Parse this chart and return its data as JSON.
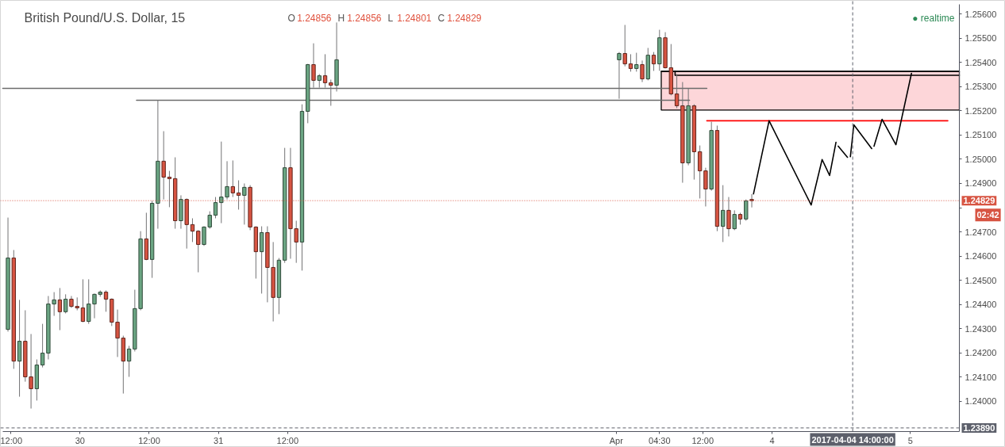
{
  "chart_data": {
    "type": "candlestick",
    "title": "British Pound/U.S. Dollar, 15",
    "subtitle": "O 1.24856 H 1.24856 L 1.24801 C 1.24829",
    "x": [
      "2017-03-29T11:30",
      "2017-03-29T12:30",
      "2017-03-29T13:30",
      "2017-03-29T14:30",
      "2017-03-29T15:30",
      "2017-03-29T16:30",
      "2017-03-29T17:30",
      "2017-03-29T18:30",
      "2017-03-29T19:30",
      "2017-03-29T20:30",
      "2017-03-29T21:30",
      "2017-03-29T22:30",
      "2017-03-29T23:30",
      "2017-03-30T00:30",
      "2017-03-30T01:30",
      "2017-03-30T02:30",
      "2017-03-30T03:30",
      "2017-03-30T04:30",
      "2017-03-30T05:30",
      "2017-03-30T06:30",
      "2017-03-30T07:30",
      "2017-03-30T08:30",
      "2017-03-30T09:30",
      "2017-03-30T10:30",
      "2017-03-30T11:30",
      "2017-03-30T12:30",
      "2017-03-30T13:30",
      "2017-03-30T14:30",
      "2017-03-30T15:30",
      "2017-03-30T16:30",
      "2017-03-30T17:30",
      "2017-03-30T18:30",
      "2017-03-30T19:30",
      "2017-03-30T20:30",
      "2017-03-30T21:30",
      "2017-03-30T22:30",
      "2017-03-30T23:30",
      "2017-03-31T00:30",
      "2017-03-31T01:30",
      "2017-03-31T02:30",
      "2017-03-31T03:30",
      "2017-03-31T04:30",
      "2017-03-31T05:30",
      "2017-03-31T06:30",
      "2017-03-31T07:30",
      "2017-03-31T08:30",
      "2017-03-31T09:30",
      "2017-03-31T10:30",
      "2017-03-31T11:30",
      "2017-03-31T12:30",
      "2017-03-31T13:30",
      "2017-03-31T14:30",
      "2017-03-31T15:30",
      "2017-03-31T16:30",
      "2017-03-31T17:30",
      "2017-03-31T18:30",
      "2017-03-31T19:30",
      "2017-03-31T20:30",
      "2017-04-02T21:30",
      "2017-04-02T22:30",
      "2017-04-02T23:30",
      "2017-04-03T00:30",
      "2017-04-03T01:30",
      "2017-04-03T02:30",
      "2017-04-03T03:30",
      "2017-04-03T04:30",
      "2017-04-03T05:30",
      "2017-04-03T06:30",
      "2017-04-03T07:30",
      "2017-04-03T08:30",
      "2017-04-03T09:30",
      "2017-04-03T10:30",
      "2017-04-03T11:30",
      "2017-04-03T12:30",
      "2017-04-03T13:30",
      "2017-04-03T14:30",
      "2017-04-03T15:30",
      "2017-04-03T16:30",
      "2017-04-03T17:30",
      "2017-04-03T18:30",
      "2017-04-03T19:30",
      "2017-04-03T20:30"
    ],
    "ohlc": [
      [
        1.24297,
        1.24759,
        1.24288,
        1.24592
      ],
      [
        1.24592,
        1.24625,
        1.24134,
        1.24166
      ],
      [
        1.24166,
        1.24419,
        1.24019,
        1.24248
      ],
      [
        1.24248,
        1.24376,
        1.24081,
        1.24101
      ],
      [
        1.24101,
        1.24278,
        1.2397,
        1.24052
      ],
      [
        1.24052,
        1.24173,
        1.24003,
        1.2415
      ],
      [
        1.2415,
        1.2432,
        1.2414,
        1.24199
      ],
      [
        1.24199,
        1.24435,
        1.24173,
        1.24402
      ],
      [
        1.24402,
        1.24451,
        1.24353,
        1.24419
      ],
      [
        1.24419,
        1.24468,
        1.24294,
        1.2437
      ],
      [
        1.2437,
        1.24442,
        1.24363,
        1.24422
      ],
      [
        1.24422,
        1.24435,
        1.24386,
        1.24392
      ],
      [
        1.24392,
        1.24429,
        1.24376,
        1.24386
      ],
      [
        1.24386,
        1.24504,
        1.24327,
        1.2433
      ],
      [
        1.2433,
        1.24504,
        1.2432,
        1.24402
      ],
      [
        1.24402,
        1.24445,
        1.24343,
        1.24442
      ],
      [
        1.24442,
        1.24458,
        1.24432,
        1.24451
      ],
      [
        1.24451,
        1.24458,
        1.2437,
        1.24422
      ],
      [
        1.24422,
        1.24425,
        1.24311,
        1.24327
      ],
      [
        1.24327,
        1.24379,
        1.24183,
        1.24261
      ],
      [
        1.24261,
        1.24271,
        1.24032,
        1.24166
      ],
      [
        1.24166,
        1.24229,
        1.24101,
        1.24216
      ],
      [
        1.24216,
        1.24461,
        1.24206,
        1.24383
      ],
      [
        1.24383,
        1.24703,
        1.24376,
        1.24671
      ],
      [
        1.24671,
        1.24779,
        1.24583,
        1.24586
      ],
      [
        1.24586,
        1.24828,
        1.2451,
        1.24818
      ],
      [
        1.24818,
        1.25244,
        1.24713,
        1.24992
      ],
      [
        1.24992,
        1.25116,
        1.24834,
        1.24926
      ],
      [
        1.24926,
        1.24952,
        1.24802,
        1.2492
      ],
      [
        1.2492,
        1.25008,
        1.24713,
        1.24746
      ],
      [
        1.24746,
        1.24851,
        1.24713,
        1.24834
      ],
      [
        1.24834,
        1.24838,
        1.24631,
        1.2473
      ],
      [
        1.2473,
        1.24756,
        1.24658,
        1.24703
      ],
      [
        1.24703,
        1.24707,
        1.24533,
        1.24648
      ],
      [
        1.24648,
        1.24723,
        1.24642,
        1.2472
      ],
      [
        1.2472,
        1.24785,
        1.24713,
        1.24769
      ],
      [
        1.24769,
        1.24844,
        1.24756,
        1.24821
      ],
      [
        1.24821,
        1.25073,
        1.24736,
        1.24844
      ],
      [
        1.24844,
        1.24992,
        1.24834,
        1.24887
      ],
      [
        1.24887,
        1.24995,
        1.24844,
        1.24861
      ],
      [
        1.24861,
        1.24913,
        1.24792,
        1.24851
      ],
      [
        1.24851,
        1.249,
        1.2473,
        1.24884
      ],
      [
        1.24884,
        1.24893,
        1.24707,
        1.2472
      ],
      [
        1.2472,
        1.24723,
        1.24507,
        1.24618
      ],
      [
        1.24618,
        1.24723,
        1.24445,
        1.24697
      ],
      [
        1.24697,
        1.24723,
        1.24409,
        1.24553
      ],
      [
        1.24553,
        1.24658,
        1.2433,
        1.24429
      ],
      [
        1.24429,
        1.24592,
        1.2436,
        1.24583
      ],
      [
        1.24583,
        1.25047,
        1.24572,
        1.24965
      ],
      [
        1.24965,
        1.25047,
        1.24589,
        1.24713
      ],
      [
        1.24713,
        1.24746,
        1.24572,
        1.24658
      ],
      [
        1.24658,
        1.25227,
        1.2454,
        1.25198
      ],
      [
        1.25198,
        1.25394,
        1.25149,
        1.25391
      ],
      [
        1.25391,
        1.25479,
        1.25296,
        1.25326
      ],
      [
        1.25326,
        1.25352,
        1.25296,
        1.25345
      ],
      [
        1.25345,
        1.25434,
        1.25296,
        1.25316
      ],
      [
        1.25316,
        1.25329,
        1.25221,
        1.25306
      ],
      [
        1.25306,
        1.25565,
        1.2528,
        1.25411
      ],
      [
        1.25411,
        1.25443,
        1.2525,
        1.25437
      ],
      [
        1.25437,
        1.25555,
        1.25384,
        1.25394
      ],
      [
        1.25394,
        1.25434,
        1.25362,
        1.25375
      ],
      [
        1.25375,
        1.2544,
        1.25362,
        1.25391
      ],
      [
        1.25391,
        1.25408,
        1.25319,
        1.25332
      ],
      [
        1.25332,
        1.2546,
        1.25326,
        1.2543
      ],
      [
        1.2543,
        1.25443,
        1.25365,
        1.25394
      ],
      [
        1.25394,
        1.25535,
        1.25365,
        1.25502
      ],
      [
        1.25502,
        1.25525,
        1.25375,
        1.25378
      ],
      [
        1.25378,
        1.25476,
        1.25264,
        1.2527
      ],
      [
        1.2527,
        1.25352,
        1.25211,
        1.25221
      ],
      [
        1.25221,
        1.25319,
        1.24903,
        1.24985
      ],
      [
        1.24985,
        1.25293,
        1.24975,
        1.25221
      ],
      [
        1.25221,
        1.25227,
        1.24916,
        1.25031
      ],
      [
        1.25031,
        1.25057,
        1.24838,
        1.24952
      ],
      [
        1.24952,
        1.24965,
        1.24805,
        1.24877
      ],
      [
        1.24877,
        1.25155,
        1.2487,
        1.25119
      ],
      [
        1.25119,
        1.25139,
        1.24703,
        1.24723
      ],
      [
        1.24723,
        1.24893,
        1.24658,
        1.24789
      ],
      [
        1.24789,
        1.24844,
        1.24681,
        1.24713
      ],
      [
        1.24713,
        1.24789,
        1.24707,
        1.24772
      ],
      [
        1.24772,
        1.24779,
        1.2473,
        1.24753
      ],
      [
        1.24753,
        1.24834,
        1.24746,
        1.24828
      ],
      [
        1.24834,
        1.24856,
        1.24801,
        1.24829
      ]
    ],
    "colors": [
      "#6ba583",
      "#d75442",
      "#6ba583",
      "#d75442",
      "#d75442",
      "#6ba583",
      "#6ba583",
      "#6ba583",
      "#6ba583",
      "#d75442",
      "#6ba583",
      "#d75442",
      "#d75442",
      "#d75442",
      "#6ba583",
      "#6ba583",
      "#6ba583",
      "#d75442",
      "#d75442",
      "#d75442",
      "#d75442",
      "#6ba583",
      "#6ba583",
      "#6ba583",
      "#d75442",
      "#6ba583",
      "#6ba583",
      "#d75442",
      "#d75442",
      "#d75442",
      "#6ba583",
      "#d75442",
      "#d75442",
      "#d75442",
      "#6ba583",
      "#6ba583",
      "#6ba583",
      "#6ba583",
      "#6ba583",
      "#d75442",
      "#d75442",
      "#6ba583",
      "#d75442",
      "#d75442",
      "#6ba583",
      "#d75442",
      "#d75442",
      "#6ba583",
      "#6ba583",
      "#d75442",
      "#d75442",
      "#6ba583",
      "#6ba583",
      "#d75442",
      "#6ba583",
      "#d75442",
      "#d75442",
      "#6ba583",
      "#6ba583",
      "#d75442",
      "#d75442",
      "#6ba583",
      "#d75442",
      "#6ba583",
      "#d75442",
      "#6ba583",
      "#d75442",
      "#d75442",
      "#d75442",
      "#d75442",
      "#6ba583",
      "#d75442",
      "#d75442",
      "#d75442",
      "#6ba583",
      "#d75442",
      "#6ba583",
      "#d75442",
      "#6ba583",
      "#d75442",
      "#6ba583",
      "#d75442"
    ],
    "series": [
      {
        "type": "line",
        "x": [
          "2017-04-03T04:48",
          "2017-04-05T08:30"
        ],
        "values": [
          1.25363,
          1.25363
        ],
        "lower": [
          1.25203,
          1.25203
        ],
        "upper": [
          1.25363,
          1.25363
        ],
        "color": "#000000"
      },
      {
        "type": "line",
        "x": [
          "2017-04-03T07:12",
          "2017-04-03T07:12",
          "2017-04-05T08:30"
        ],
        "values": [
          1.25363,
          1.25347,
          1.25347
        ],
        "color": "#000000"
      },
      {
        "type": "line",
        "x": [
          "2017-03-29T10:36",
          "2017-04-03T12:42"
        ],
        "values": [
          1.25293,
          1.25293
        ],
        "color": "#6b6b6b"
      },
      {
        "type": "line",
        "x": [
          "2017-03-30T09:48",
          "2017-04-03T09:42"
        ],
        "values": [
          1.25244,
          1.25244
        ],
        "color": "#6b6b6b"
      },
      {
        "type": "line",
        "x": [
          "2017-04-03T12:42",
          "2017-04-05T06:30"
        ],
        "values": [
          1.25159,
          1.25159
        ],
        "color": "#ff0000"
      },
      {
        "type": "line",
        "x": [
          "2017-04-03T20:48",
          "2017-04-03T23:30",
          "2017-04-04T06:48",
          "2017-04-04T08:42",
          "2017-04-04T10:00",
          "2017-04-04T11:06",
          "2017-04-04T11:18",
          "2017-04-04T11:30",
          "2017-04-04T13:06",
          "2017-04-04T13:21",
          "2017-04-04T13:36",
          "2017-04-04T14:12",
          "2017-04-04T17:18",
          "2017-04-04T17:30",
          "2017-04-04T17:42",
          "2017-04-04T19:06",
          "2017-04-04T21:30",
          "2017-04-05T00:12"
        ],
        "values": [
          1.24857,
          1.25159,
          1.24811,
          1.24999,
          1.24933,
          1.2507,
          null,
          1.25054,
          1.25008,
          null,
          1.25011,
          1.25142,
          1.25044,
          null,
          1.25054,
          1.25165,
          1.2506,
          1.25355
        ],
        "color": "#000000"
      }
    ],
    "xlim": [
      "2017-03-29T10:36",
      "2017-04-05T08:30"
    ],
    "xticks": [
      {
        "value": "2017-03-29T12:00",
        "label": "12:00"
      },
      {
        "value": "2017-03-30",
        "label": "30"
      },
      {
        "value": "2017-03-30T12:00",
        "label": "12:00"
      },
      {
        "value": "2017-03-31",
        "label": "31"
      },
      {
        "value": "2017-03-31T12:00",
        "label": "12:00"
      },
      {
        "value": "2017-04-02T21:00",
        "label": "Apr"
      },
      {
        "value": "2017-04-03T04:30",
        "label": "04:30"
      },
      {
        "value": "2017-04-03T12:00",
        "label": "12:00"
      },
      {
        "value": "2017-04-04",
        "label": "4"
      },
      {
        "value": "2017-04-05",
        "label": "5"
      }
    ],
    "ylim": [
      1.23875,
      1.2564
    ],
    "yticks": [
      {
        "value": 1.24,
        "label": "1.24000"
      },
      {
        "value": 1.241,
        "label": "1.24100"
      },
      {
        "value": 1.242,
        "label": "1.24200"
      },
      {
        "value": 1.243,
        "label": "1.24300"
      },
      {
        "value": 1.244,
        "label": "1.24400"
      },
      {
        "value": 1.245,
        "label": "1.24500"
      },
      {
        "value": 1.246,
        "label": "1.24600"
      },
      {
        "value": 1.247,
        "label": "1.24700"
      },
      {
        "value": 1.248,
        "label": null
      },
      {
        "value": 1.249,
        "label": "1.24900"
      },
      {
        "value": 1.25,
        "label": "1.25000"
      },
      {
        "value": 1.251,
        "label": "1.25100"
      },
      {
        "value": 1.252,
        "label": "1.25200"
      },
      {
        "value": 1.253,
        "label": "1.25300"
      },
      {
        "value": 1.254,
        "label": "1.25400"
      },
      {
        "value": 1.255,
        "label": "1.25500"
      },
      {
        "value": 1.256,
        "label": "1.25600"
      }
    ],
    "ref_lines": [
      {
        "axis": "y",
        "value": 1.24829,
        "label": "1.24829",
        "color": "#d75442",
        "line_style": "dotted"
      },
      {
        "axis": "x",
        "value": "2017-04-04T14:00",
        "label": "2017-04-04 14:00:00",
        "color": "#5d606b",
        "line_style": "dashed"
      },
      {
        "axis": "y",
        "value": 1.2389,
        "label": "1.23890",
        "color": "#5d606b",
        "line_style": "dashed"
      }
    ],
    "annotations": [
      "● realtime",
      "02:42"
    ]
  }
}
